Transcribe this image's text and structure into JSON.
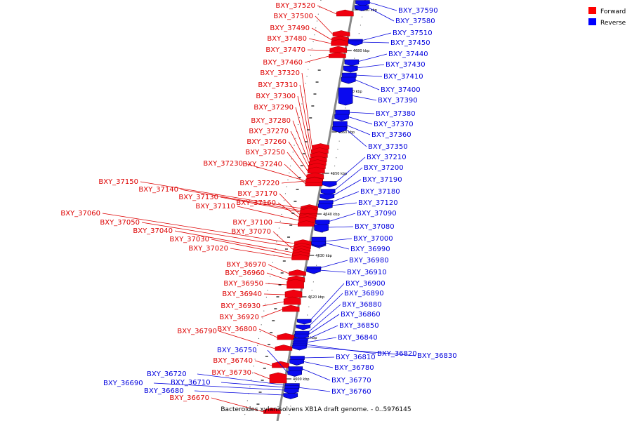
{
  "caption": "Bacteroides xylanisolvens XB1A draft genome. - 0..5976145",
  "legend": [
    {
      "label": "Forward",
      "color": "#ff0000"
    },
    {
      "label": "Reverse",
      "color": "#0000ff"
    }
  ],
  "colors": {
    "forward": "#dd0000",
    "reverse": "#0000dd",
    "forward_fill": "#f0000f",
    "reverse_fill": "#0a0af0",
    "axis": "#888888"
  },
  "scale_ticks": [
    "4690 kbp",
    "4680 kbp",
    "4670 kbp",
    "4660 kbp",
    "4650 kbp",
    "4640 kbp",
    "4630 kbp",
    "4620 kbp",
    "4610 kbp",
    "4600 kbp"
  ],
  "forward_genes": [
    "BXY_37520",
    "BXY_37500",
    "BXY_37490",
    "BXY_37480",
    "BXY_37470",
    "BXY_37460",
    "BXY_37320",
    "BXY_37310",
    "BXY_37300",
    "BXY_37290",
    "BXY_37280",
    "BXY_37270",
    "BXY_37260",
    "BXY_37250",
    "BXY_37230",
    "BXY_37240",
    "BXY_37220",
    "BXY_37150",
    "BXY_37140",
    "BXY_37170",
    "BXY_37130",
    "BXY_37160",
    "BXY_37110",
    "BXY_37060",
    "BXY_37100",
    "BXY_37050",
    "BXY_37070",
    "BXY_37040",
    "BXY_37030",
    "BXY_37020",
    "BXY_36970",
    "BXY_36960",
    "BXY_36950",
    "BXY_36940",
    "BXY_36930",
    "BXY_36920",
    "BXY_36800",
    "BXY_36790",
    "BXY_36740",
    "BXY_36730",
    "BXY_36670"
  ],
  "reverse_genes": [
    "BXY_37590",
    "BXY_37580",
    "BXY_37510",
    "BXY_37450",
    "BXY_37440",
    "BXY_37430",
    "BXY_37410",
    "BXY_37400",
    "BXY_37390",
    "BXY_37380",
    "BXY_37370",
    "BXY_37360",
    "BXY_37350",
    "BXY_37210",
    "BXY_37200",
    "BXY_37190",
    "BXY_37180",
    "BXY_37120",
    "BXY_37090",
    "BXY_37080",
    "BXY_37000",
    "BXY_36990",
    "BXY_36980",
    "BXY_36910",
    "BXY_36900",
    "BXY_36890",
    "BXY_36880",
    "BXY_36860",
    "BXY_36850",
    "BXY_36840",
    "BXY_36820",
    "BXY_36830",
    "BXY_36810",
    "BXY_36780",
    "BXY_36770",
    "BXY_36760",
    "BXY_36750",
    "BXY_36720",
    "BXY_36710",
    "BXY_36690",
    "BXY_36680"
  ]
}
